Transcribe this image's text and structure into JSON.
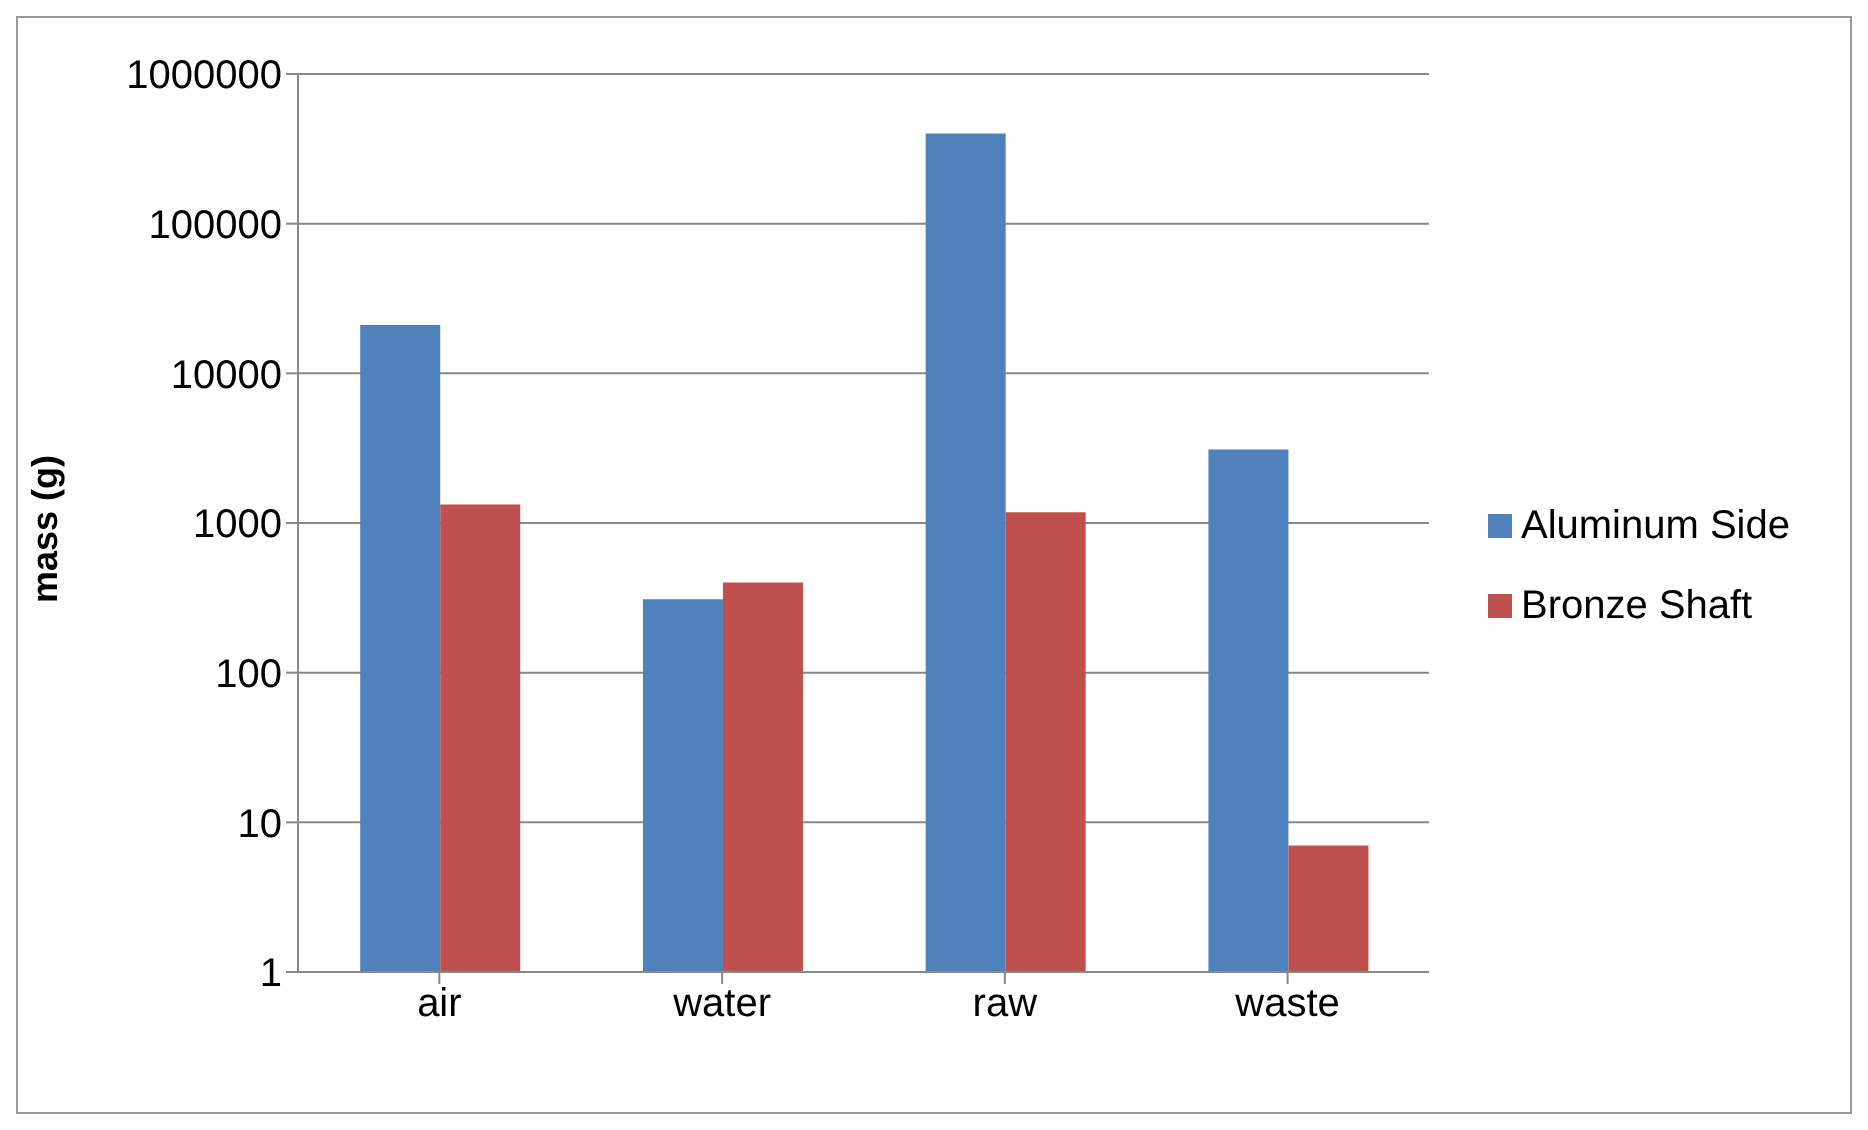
{
  "chart_data": {
    "type": "bar",
    "ylabel": "mass (g)",
    "categories": [
      "air",
      "water",
      "raw",
      "waste"
    ],
    "series": [
      {
        "name": "Aluminum Side",
        "color": "#4f81bd",
        "values": [
          21000,
          310,
          400000,
          3100
        ]
      },
      {
        "name": "Bronze Shaft",
        "color": "#c0504d",
        "values": [
          1330,
          400,
          1180,
          7
        ]
      }
    ],
    "log": "y",
    "ylim": [
      1,
      1000000
    ],
    "yticks": [
      1,
      10,
      100,
      1000,
      10000,
      100000,
      1000000
    ],
    "grid": "y",
    "legend": "right"
  }
}
